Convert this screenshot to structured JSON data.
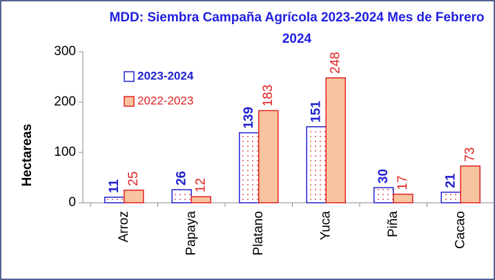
{
  "chart_data": {
    "type": "bar",
    "title": "MDD: Siembra Campaña Agrícola 2023-2024  Mes de Febrero 2024",
    "y_label": "Hectareas",
    "categories": [
      "Arroz",
      "Papaya",
      "Platano",
      "Yuca",
      "Piña",
      "Cacao"
    ],
    "series": [
      {
        "name": "2023-2024",
        "color": "#2020d0",
        "values": [
          11,
          26,
          139,
          151,
          30,
          21
        ]
      },
      {
        "name": "2022-2023",
        "color": "#e02020",
        "values": [
          25,
          12,
          183,
          248,
          17,
          73
        ]
      }
    ],
    "ylim": [
      0,
      300
    ],
    "yticks": [
      0,
      100,
      200,
      300
    ],
    "legend": "top-left"
  }
}
